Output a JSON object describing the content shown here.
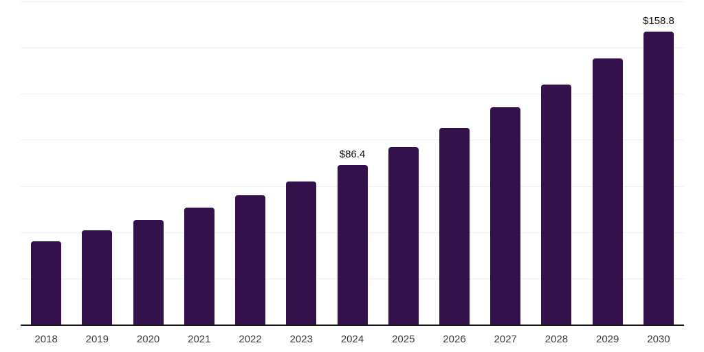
{
  "chart_data": {
    "type": "bar",
    "title": "",
    "xlabel": "",
    "ylabel": "",
    "categories": [
      "2018",
      "2019",
      "2020",
      "2021",
      "2022",
      "2023",
      "2024",
      "2025",
      "2026",
      "2027",
      "2028",
      "2029",
      "2030"
    ],
    "values": [
      45.1,
      51.0,
      56.6,
      63.2,
      69.9,
      77.6,
      86.4,
      96.1,
      106.4,
      117.6,
      130.0,
      144.0,
      158.8
    ],
    "data_labels": [
      "",
      "",
      "",
      "",
      "",
      "",
      "$86.4",
      "",
      "",
      "",
      "",
      "",
      "$158.8"
    ],
    "ylim": [
      0,
      175
    ],
    "gridline_interval": 25,
    "grid": "horizontal",
    "legend": "none",
    "colors": {
      "bar": "#33124B",
      "axis": "#1c1c1c",
      "gridline": "#f0f0f0",
      "tick_label": "#3d3d3d",
      "value_label": "#111111",
      "background": "#ffffff"
    }
  }
}
